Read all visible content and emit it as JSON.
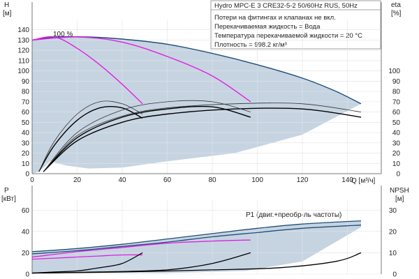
{
  "chart_data": [
    {
      "type": "line",
      "title": "Hydro MPC-E 3 CRE32-5-2 50/60Hz RUS, 50Hz",
      "notes": [
        "Потери на фитингах и клапанах не вкл.",
        "Перекачиваемая жидкость = Вода",
        "Температура перекачиваемой жидкости = 20 °C",
        "Плотность = 998.2 кг/м³"
      ],
      "xlabel": "Q [м³/ч]",
      "ylabel_left": [
        "H",
        "[м]"
      ],
      "ylabel_right": [
        "eta",
        "[%]"
      ],
      "xlim": [
        0,
        155
      ],
      "ylim_left": [
        0,
        150
      ],
      "ylim_right": [
        0,
        150
      ],
      "xticks": [
        0,
        20,
        40,
        60,
        80,
        100,
        120,
        140
      ],
      "yticks_left": [
        0,
        10,
        20,
        30,
        40,
        50,
        60,
        70,
        80,
        90,
        100,
        110,
        120,
        130,
        140
      ],
      "yticks_right": [
        0,
        10,
        20,
        30,
        40,
        50,
        60,
        70,
        80,
        90,
        100
      ],
      "annotation": "100 %",
      "series": [
        {
          "name": "",
          "role": "envelope",
          "color": "#1f4e79",
          "x": [
            0,
            10,
            25,
            40,
            60,
            80,
            100,
            120,
            135,
            146
          ],
          "y": [
            130,
            133,
            133,
            131,
            126,
            117,
            106,
            93,
            80,
            68
          ]
        },
        {
          "name": "",
          "role": "head-1-pump",
          "color": "#e020e0",
          "x": [
            0,
            10,
            20,
            30,
            40,
            49
          ],
          "y": [
            130,
            133,
            122,
            106,
            87,
            68
          ]
        },
        {
          "name": "",
          "role": "head-2-pumps",
          "color": "#e020e0",
          "x": [
            0,
            20,
            40,
            60,
            80,
            97
          ],
          "y": [
            130,
            133,
            128,
            114,
            95,
            70
          ]
        },
        {
          "name": "",
          "role": "eta",
          "color": "#000000",
          "x": [
            3,
            10,
            20,
            30,
            40,
            49
          ],
          "y": [
            2,
            28,
            52,
            64,
            64,
            54
          ]
        },
        {
          "name": "",
          "role": "eta",
          "color": "#000000",
          "x": [
            5,
            20,
            40,
            60,
            80,
            97
          ],
          "y": [
            2,
            35,
            55,
            63,
            65,
            55
          ]
        },
        {
          "name": "",
          "role": "eta",
          "color": "#000000",
          "x": [
            5,
            20,
            40,
            60,
            90,
            120,
            146
          ],
          "y": [
            2,
            32,
            50,
            58,
            63,
            63,
            55
          ]
        },
        {
          "name": "",
          "role": "eta-thin",
          "color": "#333333",
          "x": [
            3,
            10,
            20,
            30,
            40,
            49
          ],
          "y": [
            2,
            32,
            58,
            70,
            68,
            58
          ]
        },
        {
          "name": "",
          "role": "eta-thin",
          "color": "#333333",
          "x": [
            5,
            20,
            40,
            60,
            80,
            97
          ],
          "y": [
            2,
            40,
            62,
            70,
            70,
            60
          ]
        },
        {
          "name": "",
          "role": "eta-thin",
          "color": "#333333",
          "x": [
            5,
            20,
            40,
            60,
            90,
            120,
            146
          ],
          "y": [
            2,
            37,
            56,
            64,
            68,
            68,
            60
          ]
        }
      ]
    },
    {
      "type": "line",
      "xlim": [
        0,
        155
      ],
      "ylabel_left": [
        "P",
        "[кВт]"
      ],
      "ylabel_right": [
        "NPSH",
        "[м]"
      ],
      "ylim_left": [
        0,
        70
      ],
      "ylim_right": [
        0,
        35
      ],
      "yticks_left": [
        0,
        20,
        40,
        60
      ],
      "yticks_right": [
        0,
        10,
        20,
        30
      ],
      "series": [
        {
          "name": "P1 (двиг.+преобр-ль частоты)",
          "color": "#1f4e79",
          "x": [
            0,
            20,
            40,
            60,
            80,
            100,
            120,
            146
          ],
          "y": [
            21,
            24,
            28,
            33,
            38,
            43,
            47,
            50
          ]
        },
        {
          "name": "P2",
          "color": "#1f4e79",
          "x": [
            0,
            20,
            40,
            60,
            80,
            100,
            120,
            146
          ],
          "y": [
            19,
            22,
            26,
            30,
            35,
            39,
            43,
            46
          ]
        },
        {
          "name": "",
          "role": "power-1-pump",
          "color": "#e020e0",
          "x": [
            0,
            10,
            20,
            30,
            40,
            49
          ],
          "y": [
            14,
            15,
            16,
            17,
            18,
            18
          ]
        },
        {
          "name": "",
          "role": "power-2-pumps",
          "color": "#e020e0",
          "x": [
            0,
            20,
            40,
            60,
            80,
            97
          ],
          "y": [
            16,
            21,
            25,
            29,
            31,
            32
          ]
        },
        {
          "name": "",
          "role": "npsh",
          "color": "#000000",
          "axis": "right",
          "x": [
            0,
            10,
            20,
            30,
            40,
            49
          ],
          "y": [
            0.5,
            1,
            1.5,
            3,
            5,
            10
          ]
        },
        {
          "name": "",
          "role": "npsh",
          "color": "#000000",
          "axis": "right",
          "x": [
            0,
            30,
            60,
            80,
            97
          ],
          "y": [
            0.5,
            1,
            2,
            5,
            10
          ]
        },
        {
          "name": "",
          "role": "npsh",
          "color": "#000000",
          "axis": "right",
          "x": [
            0,
            40,
            80,
            110,
            135,
            146
          ],
          "y": [
            0.5,
            1,
            2,
            3,
            6,
            10
          ]
        }
      ]
    }
  ]
}
